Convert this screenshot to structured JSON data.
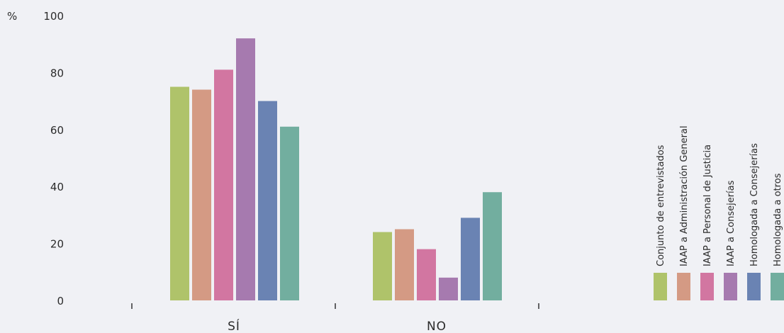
{
  "chart_data": {
    "type": "bar",
    "unit_label": "%",
    "categories": [
      "SÍ",
      "NO"
    ],
    "ylim": [
      0,
      100
    ],
    "yticks": [
      0,
      20,
      40,
      60,
      80,
      100
    ],
    "grid": false,
    "legend_placement": "right",
    "series": [
      {
        "name": "Conjunto de entrevistados",
        "color": "#afc36a",
        "values": [
          75,
          24
        ]
      },
      {
        "name": "IAAP a Administración General",
        "color": "#d49a84",
        "values": [
          74,
          25
        ]
      },
      {
        "name": "IAAP a Personal de Justicia",
        "color": "#d276a1",
        "values": [
          81,
          18
        ]
      },
      {
        "name": "IAAP a Consejerías",
        "color": "#a67aaf",
        "values": [
          92,
          8
        ]
      },
      {
        "name": "Homologada a Consejerías",
        "color": "#6a83b3",
        "values": [
          70,
          29
        ]
      },
      {
        "name": "Homologada a otros",
        "color": "#72ae9f",
        "values": [
          61,
          38
        ]
      }
    ]
  }
}
